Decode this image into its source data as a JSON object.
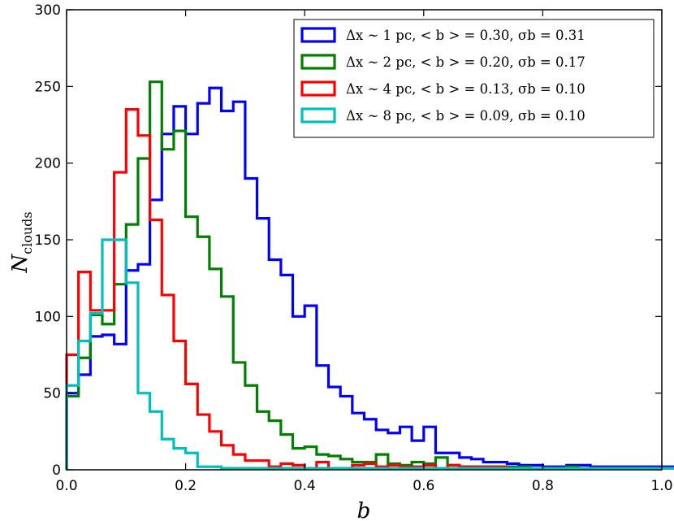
{
  "chart_data": {
    "type": "histogram",
    "title": "",
    "xlabel": "b",
    "ylabel_main": "N",
    "ylabel_sub": "clouds",
    "xlim": [
      0.0,
      1.0
    ],
    "ylim": [
      0,
      300
    ],
    "xticks": [
      0.0,
      0.2,
      0.4,
      0.6,
      0.8,
      1.0
    ],
    "xtick_labels": [
      "0.0",
      "0.2",
      "0.4",
      "0.6",
      "0.8",
      "1.0"
    ],
    "yticks": [
      0,
      50,
      100,
      150,
      200,
      250,
      300
    ],
    "ytick_labels": [
      "0",
      "50",
      "100",
      "150",
      "200",
      "250",
      "300"
    ],
    "grid": false,
    "legend_position": "top-right",
    "bin_width": 0.02,
    "series": [
      {
        "name": "dx1",
        "label": "Δx ∼ 1 pc,  < b > = 0.30,  σb = 0.31",
        "color": "#0000ff",
        "x_start": 0.0,
        "values": [
          50,
          62,
          87,
          88,
          82,
          130,
          134,
          176,
          219,
          237,
          219,
          239,
          249,
          234,
          240,
          190,
          164,
          137,
          127,
          100,
          107,
          68,
          54,
          48,
          37,
          33,
          26,
          24,
          28,
          19,
          28,
          11,
          11,
          8,
          7,
          5,
          5,
          4,
          3,
          3,
          2,
          2,
          3,
          3,
          2,
          2,
          2,
          2,
          2,
          2,
          2,
          2,
          2,
          2,
          2,
          2,
          2,
          2,
          2,
          2,
          2,
          2,
          2,
          2,
          3,
          3,
          3,
          3,
          4,
          4,
          3,
          3,
          3,
          3,
          3,
          3,
          2,
          2,
          2,
          2,
          2,
          2,
          2,
          2,
          2,
          2,
          2,
          2,
          2,
          2,
          3,
          3,
          3,
          2,
          2,
          2,
          2,
          2,
          2,
          2
        ]
      },
      {
        "name": "dx2",
        "label": "Δx ∼ 2 pc,  < b > = 0.20,  σb = 0.17",
        "color": "#008000",
        "x_start": 0.0,
        "values": [
          48,
          73,
          101,
          95,
          121,
          160,
          203,
          253,
          209,
          221,
          165,
          152,
          131,
          113,
          70,
          55,
          38,
          32,
          23,
          14,
          15,
          10,
          9,
          7,
          5,
          5,
          10,
          4,
          3,
          5,
          4,
          8,
          3,
          2,
          2,
          2,
          2,
          2,
          2,
          1,
          1,
          1,
          2,
          1,
          1,
          1,
          1,
          1,
          1,
          1,
          1,
          1,
          1,
          1,
          1,
          1,
          1,
          1,
          1,
          1,
          1,
          1,
          1,
          1,
          1,
          1,
          1,
          1,
          1,
          1,
          1,
          1,
          2,
          2,
          2,
          2,
          3,
          3,
          3,
          3,
          3,
          3,
          3,
          3,
          3,
          3,
          3,
          3,
          3,
          3,
          3,
          3,
          3,
          3,
          3,
          3,
          3,
          3,
          3,
          3
        ]
      },
      {
        "name": "dx4",
        "label": "Δx ∼ 4 pc,  < b > = 0.13,  σb = 0.10",
        "color": "#ff0000",
        "x_start": 0.0,
        "values": [
          75,
          129,
          104,
          104,
          194,
          235,
          218,
          163,
          114,
          84,
          56,
          36,
          25,
          16,
          10,
          6,
          6,
          2,
          4,
          3,
          1,
          5,
          1,
          1,
          3,
          4,
          2,
          3,
          2,
          2,
          3,
          1,
          3,
          2,
          2,
          2,
          2,
          1,
          1,
          1,
          1,
          1,
          1,
          1,
          1,
          1,
          1,
          1,
          1,
          1,
          1,
          1,
          1,
          1,
          1,
          1,
          1,
          1,
          1,
          1,
          1,
          1,
          1,
          1,
          1,
          1,
          1,
          1,
          1,
          1,
          1,
          1,
          1,
          1,
          1,
          1,
          1,
          1,
          1,
          1,
          1,
          1,
          1,
          1,
          1,
          1,
          1,
          1,
          1,
          1,
          1,
          1,
          1,
          1,
          1,
          1,
          1,
          1,
          1,
          1
        ]
      },
      {
        "name": "dx8",
        "label": "Δx ∼ 8 pc,  < b > = 0.09,  σb = 0.10",
        "color": "#00bfbf",
        "x_start": 0.0,
        "values": [
          55,
          84,
          102,
          150,
          150,
          122,
          50,
          38,
          20,
          14,
          11,
          2,
          2,
          1,
          1,
          1,
          1,
          1,
          1,
          1,
          1,
          1,
          1,
          1,
          1,
          1,
          1,
          1,
          1,
          1,
          1,
          1,
          1,
          1,
          1,
          1,
          1,
          1,
          1,
          1,
          1,
          1,
          1,
          1,
          1,
          1,
          1,
          1,
          1,
          1,
          1,
          1,
          1,
          1,
          1,
          1,
          1,
          1,
          1,
          1,
          1,
          1,
          1,
          1,
          1,
          1,
          1,
          1,
          1,
          1,
          1,
          1,
          1,
          1,
          1,
          1,
          1,
          1,
          1,
          1,
          1,
          1,
          1,
          1,
          1,
          1,
          1,
          1,
          1,
          1,
          1,
          1,
          1,
          1,
          1,
          1,
          1,
          1,
          1,
          1
        ]
      }
    ]
  }
}
